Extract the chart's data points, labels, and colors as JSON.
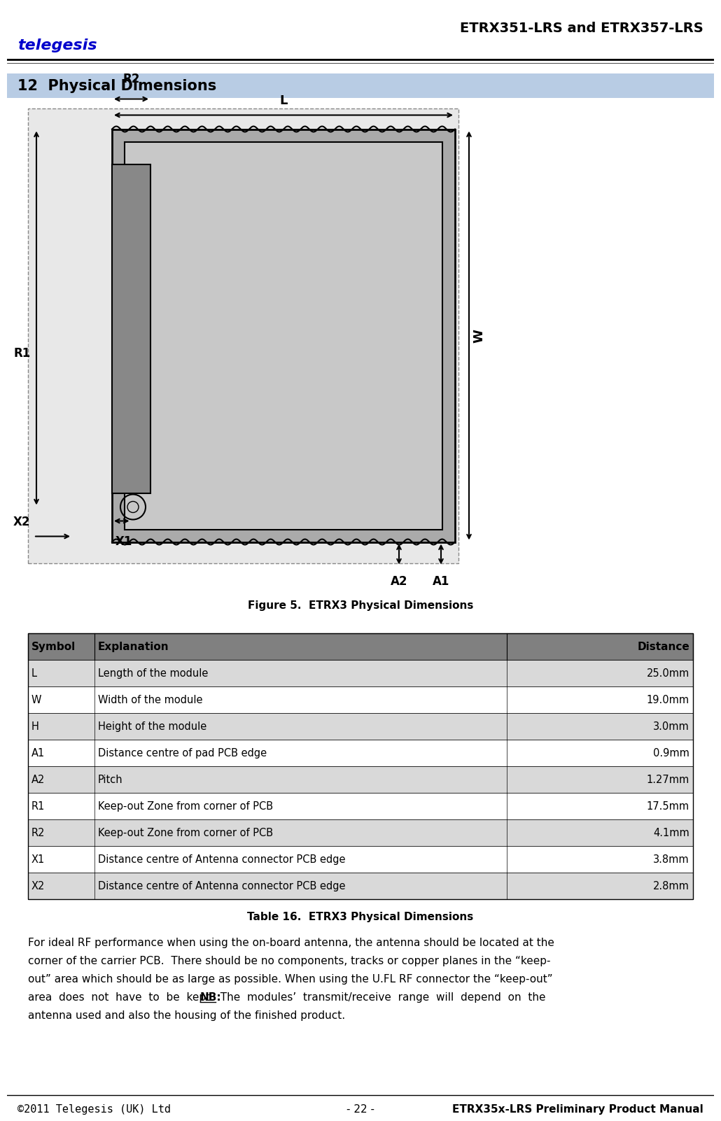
{
  "header_title": "ETRX351-LRS and ETRX357-LRS",
  "section_title": "12  Physical Dimensions",
  "figure_caption": "Figure 5.  ETRX3 Physical Dimensions",
  "table_caption": "Table 16.  ETRX3 Physical Dimensions",
  "table_headers": [
    "Symbol",
    "Explanation",
    "Distance"
  ],
  "table_rows": [
    [
      "L",
      "Length of the module",
      "25.0mm"
    ],
    [
      "W",
      "Width of the module",
      "19.0mm"
    ],
    [
      "H",
      "Height of the module",
      "3.0mm"
    ],
    [
      "A1",
      "Distance centre of pad PCB edge",
      "0.9mm"
    ],
    [
      "A2",
      "Pitch",
      "1.27mm"
    ],
    [
      "R1",
      "Keep-out Zone from corner of PCB",
      "17.5mm"
    ],
    [
      "R2",
      "Keep-out Zone from corner of PCB",
      "4.1mm"
    ],
    [
      "X1",
      "Distance centre of Antenna connector PCB edge",
      "3.8mm"
    ],
    [
      "X2",
      "Distance centre of Antenna connector PCB edge",
      "2.8mm"
    ]
  ],
  "footer_left": "©2011 Telegesis (UK) Ltd",
  "footer_center": "- 22 -",
  "footer_right": "ETRX35x-LRS Preliminary Product Manual",
  "body_text": "For ideal RF performance when using the on-board antenna, the antenna should be located at the corner of the carrier PCB.  There should be no components, tracks or copper planes in the “keep-out” area which should be as large as possible. When using the U.FL RF connector the “keep-out” area  does  not  have  to  be  kept.   NB:  The  modules’  transmit/receive  range  will  depend  on  the antenna used and also the housing of the finished product.",
  "header_bg": "#ffffff",
  "section_bg": "#b8cce4",
  "table_header_bg": "#808080",
  "table_row_bg_odd": "#d9d9d9",
  "table_row_bg_even": "#ffffff",
  "page_bg": "#ffffff"
}
